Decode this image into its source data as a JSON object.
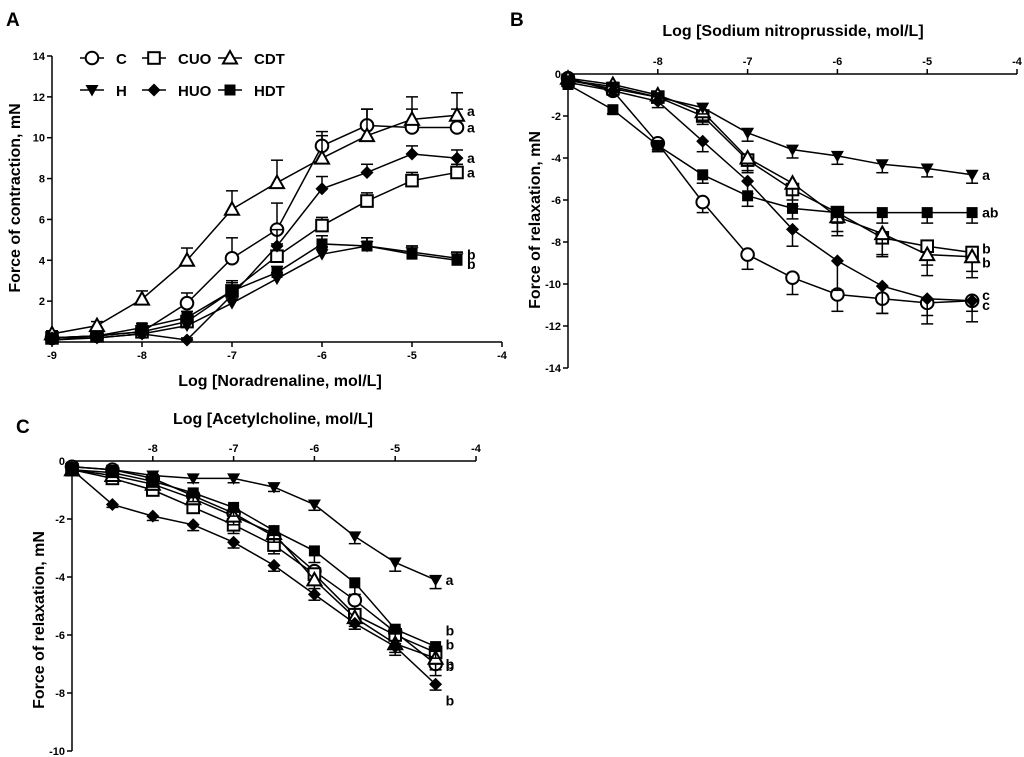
{
  "legend": [
    {
      "key": "C",
      "label": "C",
      "marker": "circle-open"
    },
    {
      "key": "CUO",
      "label": "CUO",
      "marker": "square-open"
    },
    {
      "key": "CDT",
      "label": "CDT",
      "marker": "triangle-open"
    },
    {
      "key": "H",
      "label": "H",
      "marker": "triangle-down-filled"
    },
    {
      "key": "HUO",
      "label": "HUO",
      "marker": "diamond-filled"
    },
    {
      "key": "HDT",
      "label": "HDT",
      "marker": "square-filled"
    }
  ],
  "chart_data": [
    {
      "panel": "A",
      "type": "line",
      "xlabel": "Log [Noradrenaline, mol/L]",
      "ylabel": "Force of contraction, mN",
      "xlim": [
        -9,
        -4
      ],
      "ylim": [
        0,
        14
      ],
      "xticks": [
        -9,
        -8,
        -7,
        -6,
        -5,
        -4
      ],
      "yticks": [
        2,
        4,
        6,
        8,
        10,
        12,
        14
      ],
      "xaxis_position": "bottom",
      "x": [
        -9,
        -8.5,
        -8,
        -7.5,
        -7,
        -6.5,
        -6,
        -5.5,
        -5,
        -4.5
      ],
      "series": [
        {
          "name": "C",
          "values": [
            0.2,
            0.3,
            0.5,
            1.9,
            4.1,
            5.5,
            9.6,
            10.6,
            10.5,
            10.5
          ],
          "err": [
            0.1,
            0.15,
            0.2,
            0.5,
            1.0,
            1.3,
            0.7,
            0.8,
            0.9,
            0.9
          ],
          "label": "a"
        },
        {
          "name": "CUO",
          "values": [
            0.2,
            0.3,
            0.5,
            1.0,
            2.5,
            4.2,
            5.7,
            6.9,
            7.9,
            8.3
          ],
          "err": [
            0.1,
            0.1,
            0.2,
            0.3,
            0.5,
            0.6,
            0.4,
            0.4,
            0.4,
            0.4
          ],
          "label": "a"
        },
        {
          "name": "CDT",
          "values": [
            0.4,
            0.8,
            2.1,
            4.0,
            6.5,
            7.8,
            9.0,
            10.1,
            10.9,
            11.1
          ],
          "err": [
            0.15,
            0.2,
            0.4,
            0.6,
            0.9,
            1.1,
            1.1,
            1.3,
            1.1,
            1.1
          ],
          "label": "a"
        },
        {
          "name": "H",
          "values": [
            0.1,
            0.2,
            0.4,
            0.8,
            1.9,
            3.1,
            4.3,
            4.7,
            4.4,
            4.1
          ],
          "err": [
            0.05,
            0.1,
            0.15,
            0.2,
            0.3,
            0.3,
            0.35,
            0.4,
            0.3,
            0.3
          ],
          "label": "b"
        },
        {
          "name": "HUO",
          "values": [
            0.2,
            0.2,
            0.4,
            0.1,
            2.3,
            4.7,
            7.5,
            8.3,
            9.2,
            9.0
          ],
          "err": [
            0.1,
            0.1,
            0.15,
            0.1,
            0.3,
            0.8,
            0.6,
            0.4,
            0.4,
            0.4
          ],
          "label": "a"
        },
        {
          "name": "HDT",
          "values": [
            0.2,
            0.3,
            0.7,
            1.2,
            2.5,
            3.4,
            4.8,
            4.7,
            4.3,
            4.0
          ],
          "err": [
            0.1,
            0.1,
            0.2,
            0.3,
            0.4,
            0.3,
            0.4,
            0.4,
            0.4,
            0.4
          ],
          "label": "b"
        }
      ]
    },
    {
      "panel": "B",
      "type": "line",
      "xlabel": "Log [Sodium nitroprusside, mol/L]",
      "ylabel": "Force of relaxation, mN",
      "xlim": [
        -9,
        -4
      ],
      "ylim": [
        -14,
        0
      ],
      "xticks": [
        -8,
        -7,
        -6,
        -5,
        -4
      ],
      "yticks": [
        -2,
        -4,
        -6,
        -8,
        -10,
        -12,
        -14
      ],
      "xaxis_position": "top",
      "x": [
        -9,
        -8.5,
        -8,
        -7.5,
        -7,
        -6.5,
        -6,
        -5.5,
        -5,
        -4.5
      ],
      "series": [
        {
          "name": "C",
          "values": [
            -0.2,
            -0.8,
            -3.3,
            -6.1,
            -8.6,
            -9.7,
            -10.5,
            -10.7,
            -10.9,
            -10.8
          ],
          "err": [
            0.1,
            0.2,
            0.3,
            0.5,
            0.7,
            0.8,
            0.8,
            0.7,
            0.6,
            0.5
          ],
          "label": "c"
        },
        {
          "name": "CUO",
          "values": [
            -0.3,
            -0.7,
            -1.1,
            -2.0,
            -4.1,
            -5.5,
            -6.6,
            -7.8,
            -8.2,
            -8.5
          ],
          "err": [
            0.1,
            0.2,
            0.2,
            0.4,
            0.6,
            0.8,
            0.9,
            0.9,
            0.9,
            0.9
          ],
          "label": "b"
        },
        {
          "name": "CDT",
          "values": [
            -0.2,
            -0.5,
            -1.0,
            -1.8,
            -4.0,
            -5.2,
            -6.8,
            -7.6,
            -8.6,
            -8.7
          ],
          "err": [
            0.1,
            0.2,
            0.3,
            0.4,
            0.6,
            0.8,
            0.9,
            1.0,
            1.0,
            1.0
          ],
          "label": "b"
        },
        {
          "name": "H",
          "values": [
            -0.3,
            -0.6,
            -1.1,
            -1.6,
            -2.8,
            -3.6,
            -3.9,
            -4.3,
            -4.5,
            -4.8
          ],
          "err": [
            0.1,
            0.15,
            0.2,
            0.3,
            0.4,
            0.4,
            0.4,
            0.4,
            0.4,
            0.4
          ],
          "label": "a"
        },
        {
          "name": "HUO",
          "values": [
            -0.4,
            -0.8,
            -1.3,
            -3.2,
            -5.1,
            -7.4,
            -8.9,
            -10.1,
            -10.7,
            -10.8
          ],
          "err": [
            0.1,
            0.2,
            0.3,
            0.5,
            0.6,
            0.8,
            1.4,
            1.3,
            1.2,
            1.0
          ],
          "label": "c"
        },
        {
          "name": "HDT",
          "values": [
            -0.5,
            -1.7,
            -3.4,
            -4.8,
            -5.8,
            -6.4,
            -6.6,
            -6.6,
            -6.6,
            -6.6
          ],
          "err": [
            0.1,
            0.2,
            0.3,
            0.4,
            0.5,
            0.5,
            0.5,
            0.5,
            0.5,
            0.5
          ],
          "label": "ab"
        }
      ]
    },
    {
      "panel": "C",
      "type": "line",
      "xlabel": "Log [Acetylcholine, mol/L]",
      "ylabel": "Force of relaxation, mN",
      "xlim": [
        -9,
        -4
      ],
      "ylim": [
        -10,
        0
      ],
      "xticks": [
        -8,
        -7,
        -6,
        -5,
        -4
      ],
      "yticks": [
        -2,
        -4,
        -6,
        -8,
        -10
      ],
      "xaxis_position": "top",
      "x": [
        -9,
        -8.5,
        -8,
        -7.5,
        -7,
        -6.5,
        -6,
        -5.5,
        -5,
        -4.5
      ],
      "series": [
        {
          "name": "C",
          "values": [
            -0.2,
            -0.3,
            -0.6,
            -1.2,
            -1.8,
            -2.6,
            -3.8,
            -4.8,
            -5.9,
            -7.0
          ],
          "err": [
            0.1,
            0.1,
            0.2,
            0.2,
            0.3,
            0.3,
            0.4,
            0.4,
            0.4,
            0.4
          ],
          "label": "b"
        },
        {
          "name": "CUO",
          "values": [
            -0.3,
            -0.6,
            -1.0,
            -1.6,
            -2.2,
            -2.9,
            -3.9,
            -5.3,
            -6.0,
            -6.6
          ],
          "err": [
            0.1,
            0.1,
            0.2,
            0.2,
            0.3,
            0.3,
            0.3,
            0.4,
            0.4,
            0.4
          ],
          "label": "b"
        },
        {
          "name": "CDT",
          "values": [
            -0.3,
            -0.5,
            -0.8,
            -1.3,
            -1.9,
            -2.5,
            -4.1,
            -5.4,
            -6.3,
            -6.8
          ],
          "err": [
            0.1,
            0.1,
            0.2,
            0.2,
            0.3,
            0.3,
            0.3,
            0.4,
            0.4,
            0.4
          ],
          "label": "b"
        },
        {
          "name": "H",
          "values": [
            -0.2,
            -0.3,
            -0.5,
            -0.6,
            -0.6,
            -0.9,
            -1.5,
            -2.6,
            -3.5,
            -4.1
          ],
          "err": [
            0.1,
            0.1,
            0.15,
            0.15,
            0.15,
            0.15,
            0.2,
            0.25,
            0.3,
            0.3
          ],
          "label": "a"
        },
        {
          "name": "HUO",
          "values": [
            -0.3,
            -1.5,
            -1.9,
            -2.2,
            -2.8,
            -3.6,
            -4.6,
            -5.6,
            -6.4,
            -7.7
          ],
          "err": [
            0.1,
            0.1,
            0.15,
            0.2,
            0.2,
            0.2,
            0.2,
            0.2,
            0.2,
            0.2
          ],
          "label": "b"
        },
        {
          "name": "HDT",
          "values": [
            -0.3,
            -0.4,
            -0.7,
            -1.1,
            -1.6,
            -2.4,
            -3.1,
            -4.2,
            -5.8,
            -6.4
          ],
          "err": [
            0.1,
            0.1,
            0.2,
            0.3,
            0.3,
            0.4,
            0.4,
            0.4,
            0.4,
            0.4
          ],
          "label": "b"
        }
      ]
    }
  ]
}
